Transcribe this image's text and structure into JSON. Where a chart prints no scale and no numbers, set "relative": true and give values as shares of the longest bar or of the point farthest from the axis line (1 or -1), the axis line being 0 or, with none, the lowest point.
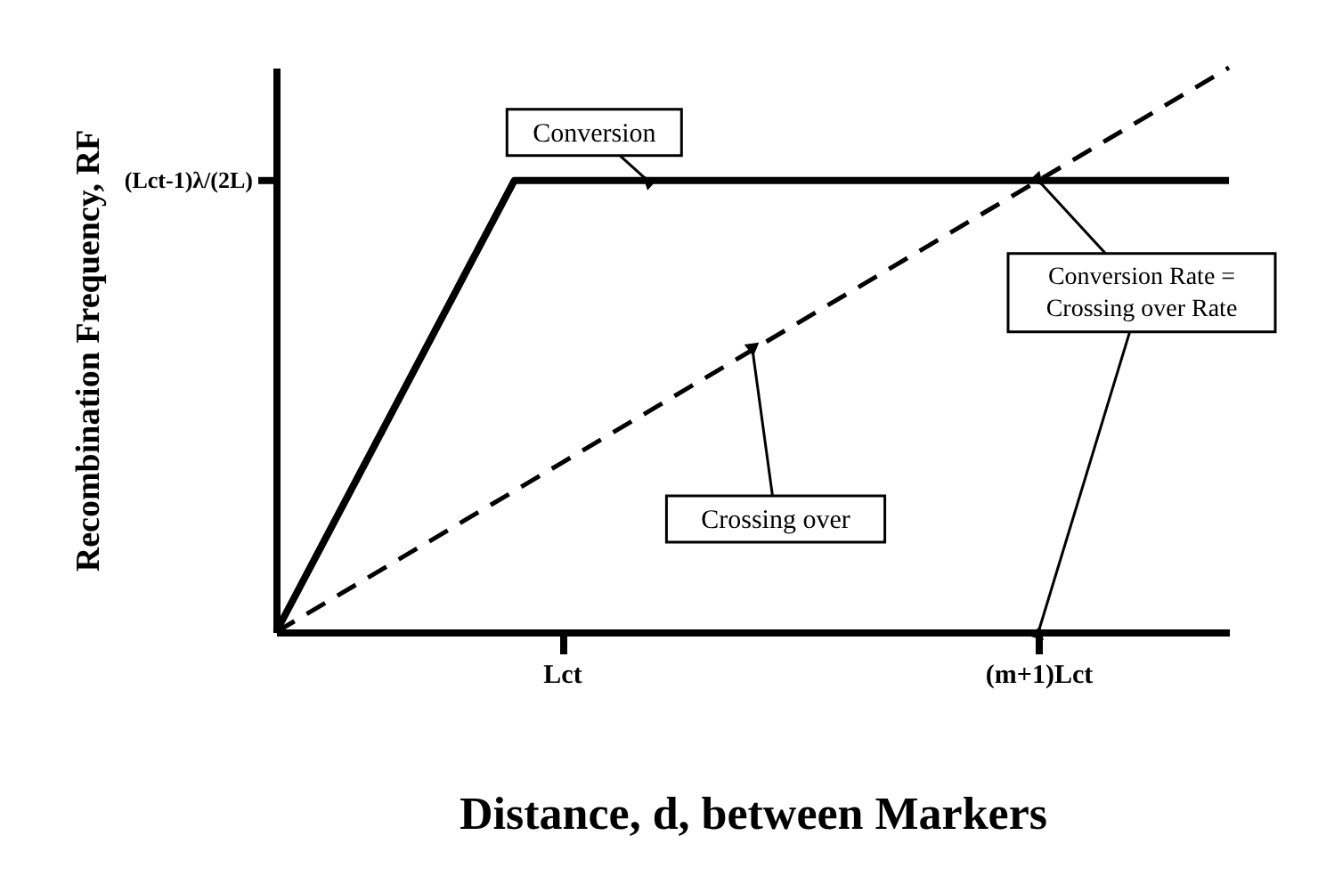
{
  "chart_data": {
    "type": "line",
    "relative": true,
    "xlabel": "Distance, d, between Markers",
    "ylabel": "Recombination Frequency, RF",
    "categories": [
      null,
      null,
      null,
      null,
      null,
      null,
      "Lct",
      null,
      null,
      null,
      null,
      null,
      null,
      null,
      null,
      null,
      "(m+1)Lct",
      null,
      null,
      null,
      null
    ],
    "series": [
      {
        "name": "Conversion",
        "color": "#000000",
        "line_style": "solid",
        "values": [
          0,
          0.16,
          0.32,
          0.48,
          0.64,
          0.8,
          0.8,
          0.8,
          0.8,
          0.8,
          0.8,
          0.8,
          0.8,
          0.8,
          0.8,
          0.8,
          0.8,
          0.8,
          0.8,
          0.8,
          0.8
        ]
      },
      {
        "name": "Crossing over",
        "color": "#000000",
        "line_style": "dashed",
        "values": [
          0,
          0.05,
          0.1,
          0.15,
          0.2,
          0.25,
          0.3,
          0.35,
          0.4,
          0.45,
          0.5,
          0.55,
          0.6,
          0.65,
          0.7,
          0.75,
          0.8,
          0.85,
          0.9,
          0.95,
          1
        ]
      }
    ],
    "annotations": [
      "(Lct-1)λ/(2L)",
      {
        "text": "Conversion Rate = Crossing over Rate",
        "x": "(m+1)Lct",
        "y": 0.8
      }
    ],
    "marker": "none"
  }
}
